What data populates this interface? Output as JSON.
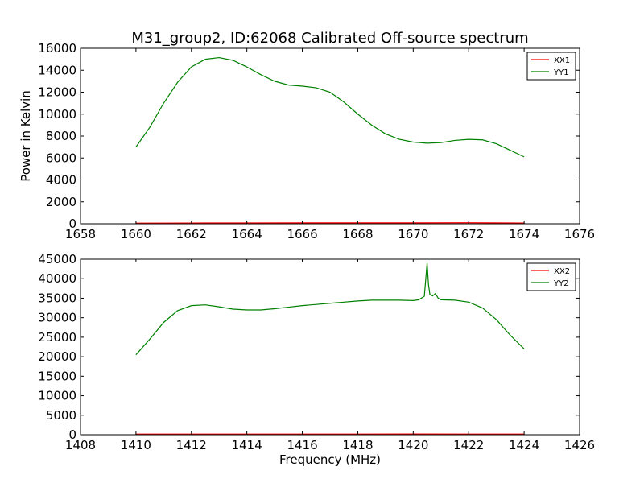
{
  "figure": {
    "title": "M31_group2, ID:62068 Calibrated Off-source spectrum",
    "xlabel": "Frequency (MHz)"
  },
  "chart_data": [
    {
      "type": "line",
      "ylabel": "Power in Kelvin",
      "xlabel": "",
      "xlim": [
        1658,
        1676
      ],
      "ylim": [
        0,
        16000
      ],
      "xticks": [
        1658,
        1660,
        1662,
        1664,
        1666,
        1668,
        1670,
        1672,
        1674,
        1676
      ],
      "yticks": [
        0,
        2000,
        4000,
        6000,
        8000,
        10000,
        12000,
        14000,
        16000
      ],
      "legend_position": "top-right",
      "grid": false,
      "series": [
        {
          "name": "XX1",
          "color": "#ff0000",
          "x": [
            1660,
            1662,
            1664,
            1666,
            1668,
            1670,
            1672,
            1674
          ],
          "y": [
            60,
            70,
            75,
            80,
            85,
            85,
            90,
            70
          ]
        },
        {
          "name": "YY1",
          "color": "#008000",
          "x": [
            1660.0,
            1660.5,
            1661.0,
            1661.5,
            1662.0,
            1662.5,
            1663.0,
            1663.5,
            1664.0,
            1664.5,
            1665.0,
            1665.5,
            1666.0,
            1666.5,
            1667.0,
            1667.5,
            1668.0,
            1668.5,
            1669.0,
            1669.5,
            1670.0,
            1670.5,
            1671.0,
            1671.5,
            1672.0,
            1672.5,
            1673.0,
            1673.5,
            1674.0
          ],
          "y": [
            7000,
            8800,
            11000,
            12900,
            14300,
            15000,
            15150,
            14900,
            14300,
            13600,
            13000,
            12650,
            12550,
            12400,
            12000,
            11100,
            10000,
            9000,
            8200,
            7700,
            7450,
            7350,
            7400,
            7600,
            7700,
            7650,
            7300,
            6700,
            6100
          ]
        }
      ]
    },
    {
      "type": "line",
      "ylabel": "",
      "xlabel": "Frequency (MHz)",
      "xlim": [
        1408,
        1426
      ],
      "ylim": [
        0,
        45000
      ],
      "xticks": [
        1408,
        1410,
        1412,
        1414,
        1416,
        1418,
        1420,
        1422,
        1424,
        1426
      ],
      "yticks": [
        0,
        5000,
        10000,
        15000,
        20000,
        25000,
        30000,
        35000,
        40000,
        45000
      ],
      "legend_position": "top-right",
      "grid": false,
      "series": [
        {
          "name": "XX2",
          "color": "#ff0000",
          "x": [
            1410,
            1412,
            1414,
            1416,
            1418,
            1420,
            1422,
            1424
          ],
          "y": [
            150,
            160,
            165,
            170,
            170,
            175,
            170,
            160
          ]
        },
        {
          "name": "YY2",
          "color": "#008000",
          "x": [
            1410.0,
            1410.5,
            1411.0,
            1411.5,
            1412.0,
            1412.5,
            1413.0,
            1413.5,
            1414.0,
            1414.5,
            1415.0,
            1415.5,
            1416.0,
            1416.5,
            1417.0,
            1417.5,
            1418.0,
            1418.5,
            1419.0,
            1419.5,
            1420.0,
            1420.2,
            1420.4,
            1420.5,
            1420.55,
            1420.6,
            1420.7,
            1420.8,
            1420.9,
            1421.0,
            1421.5,
            1422.0,
            1422.5,
            1423.0,
            1423.5,
            1424.0
          ],
          "y": [
            20500,
            24500,
            28800,
            31800,
            33100,
            33300,
            32800,
            32200,
            32000,
            32000,
            32300,
            32700,
            33100,
            33400,
            33700,
            34000,
            34300,
            34500,
            34500,
            34500,
            34400,
            34600,
            35500,
            44000,
            38500,
            36000,
            35600,
            36200,
            35000,
            34600,
            34500,
            34000,
            32500,
            29500,
            25500,
            22000
          ]
        }
      ]
    }
  ]
}
